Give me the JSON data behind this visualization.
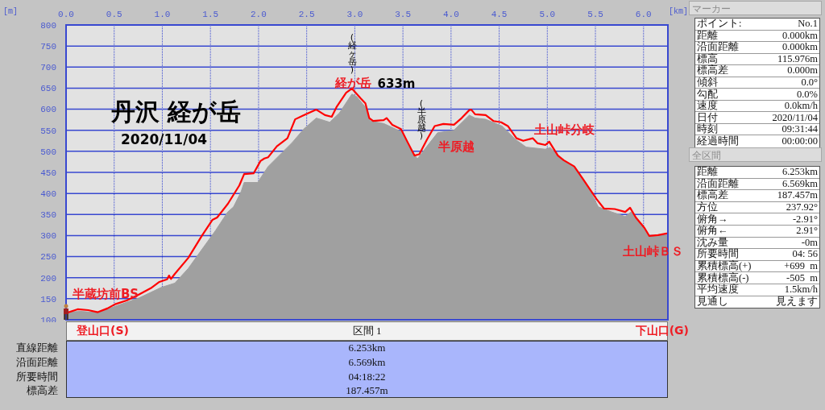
{
  "chart_data": [
    {
      "type": "area",
      "title": "丹沢 経が岳",
      "subtitle": "2020/11/04",
      "xlabel": "[km]",
      "ylabel": "[m]",
      "xlim": [
        0,
        6.253
      ],
      "xticks": [
        {
          "value": 0,
          "label": "0.0"
        },
        0.5,
        {
          "value": 1,
          "label": "1.0"
        },
        1.5,
        {
          "value": 2,
          "label": "2.0"
        },
        2.5,
        {
          "value": 3,
          "label": "3.0"
        },
        3.5,
        {
          "value": 4,
          "label": "4.0"
        },
        4.5,
        {
          "value": 5,
          "label": "5.0"
        },
        5.5,
        {
          "value": 6,
          "label": "6.0"
        }
      ],
      "ylim": [
        100,
        800
      ],
      "yticks": [
        100,
        150,
        200,
        250,
        300,
        350,
        400,
        450,
        500,
        550,
        600,
        650,
        700,
        750,
        800
      ],
      "grid": true,
      "series": [
        {
          "color": "#a0a0a0",
          "x": [
            0,
            0.15,
            0.33,
            0.51,
            0.76,
            0.99,
            1.13,
            1.27,
            1.43,
            1.55,
            1.68,
            1.74,
            1.82,
            1.85,
            1.99,
            2.1,
            2.24,
            2.35,
            2.47,
            2.6,
            2.74,
            2.84,
            2.97,
            3.02,
            3.11,
            3.16,
            3.3,
            3.48,
            3.56,
            3.65,
            3.75,
            3.86,
            4.03,
            4.19,
            4.25,
            4.36,
            4.53,
            4.67,
            4.78,
            4.98,
            5.03,
            5.14,
            5.28,
            5.4,
            5.53,
            5.67,
            5.81,
            5.87,
            5.98,
            6.06,
            6.253
          ],
          "values": [
            118,
            120,
            117,
            132,
            152,
            177,
            187,
            222,
            273,
            311,
            356,
            368,
            405,
            426,
            426,
            464,
            496,
            521,
            553,
            579,
            569,
            591,
            636,
            630,
            605,
            572,
            566,
            547,
            512,
            482,
            512,
            544,
            550,
            586,
            579,
            576,
            560,
            528,
            510,
            505,
            509,
            483,
            461,
            426,
            368,
            356,
            345,
            356,
            324,
            299,
            301
          ]
        },
        {
          "type": "line",
          "color": "#ff0000",
          "x": [
            0,
            0.12,
            0.23,
            0.33,
            0.43,
            0.51,
            0.63,
            0.74,
            0.88,
            0.97,
            1.05,
            1.07,
            1.09,
            1.13,
            1.27,
            1.41,
            1.52,
            1.57,
            1.68,
            1.77,
            1.8,
            1.85,
            1.95,
            2.02,
            2.06,
            2.1,
            2.19,
            2.3,
            2.38,
            2.47,
            2.6,
            2.69,
            2.76,
            2.81,
            2.91,
            2.97,
            3.01,
            3.06,
            3.11,
            3.15,
            3.19,
            3.3,
            3.33,
            3.39,
            3.48,
            3.55,
            3.62,
            3.67,
            3.75,
            3.83,
            3.92,
            4.03,
            4.11,
            4.19,
            4.21,
            4.25,
            4.36,
            4.44,
            4.52,
            4.59,
            4.68,
            4.75,
            4.85,
            4.9,
            4.98,
            5.02,
            5.11,
            5.17,
            5.28,
            5.36,
            5.51,
            5.59,
            5.7,
            5.81,
            5.86,
            5.92,
            6.01,
            6.06,
            6.15,
            6.24
          ],
          "values": [
            116,
            125,
            123,
            118,
            127,
            137,
            146,
            158,
            175,
            190,
            196,
            205,
            197,
            209,
            247,
            299,
            337,
            343,
            375,
            408,
            419,
            446,
            448,
            477,
            483,
            486,
            512,
            531,
            576,
            586,
            599,
            586,
            582,
            605,
            639,
            649,
            639,
            626,
            614,
            579,
            572,
            574,
            579,
            563,
            553,
            521,
            490,
            493,
            528,
            560,
            565,
            563,
            579,
            598,
            599,
            588,
            586,
            572,
            569,
            560,
            531,
            525,
            531,
            519,
            515,
            523,
            490,
            479,
            464,
            438,
            387,
            364,
            363,
            356,
            366,
            343,
            318,
            299,
            301,
            305
          ]
        }
      ],
      "annotations": [
        "半蔵坊前BS",
        "(経ヶ岳)",
        "経が岳",
        "633m",
        "(半原越)",
        "半原越",
        "土山峠分岐",
        "土山峠ＢＳ"
      ]
    },
    {
      "type": "other",
      "title": "マーカー",
      "annotations": [
        "ポイント:",
        "No.1",
        "距離",
        "0.000km",
        "沿面距離",
        "0.000km",
        "標高",
        "115.976m",
        "標高差",
        "0.000m",
        "傾斜",
        "0.0°",
        "勾配",
        "0.0%",
        "速度",
        "0.0km/h",
        "日付",
        "2020/11/04",
        "時刻",
        "09:31:44",
        "経過時間",
        "00:00:00"
      ]
    },
    {
      "type": "other",
      "title": "全区間",
      "annotations": [
        "距離",
        "6.253km",
        "沿面距離",
        "6.569km",
        "標高差",
        "187.457m",
        "方位",
        "237.92°",
        "俯角→",
        "-2.91°",
        "俯角←",
        "2.91°",
        "沈み量",
        "-0m",
        "所要時間",
        "04: 56",
        "累積標高(+)",
        "+699  m",
        "累積標高(-)",
        "-505  m",
        "平均速度",
        "1.5km/h",
        "見通し",
        "見えます"
      ]
    },
    {
      "type": "other",
      "title": "区間 1",
      "annotations": [
        "登山口(S)",
        "下山口(G)",
        "直線距離",
        "6.253km",
        "沿面距離",
        "6.569km",
        "所要時間",
        "04:18:22",
        "標高差",
        "187.457m"
      ]
    }
  ]
}
